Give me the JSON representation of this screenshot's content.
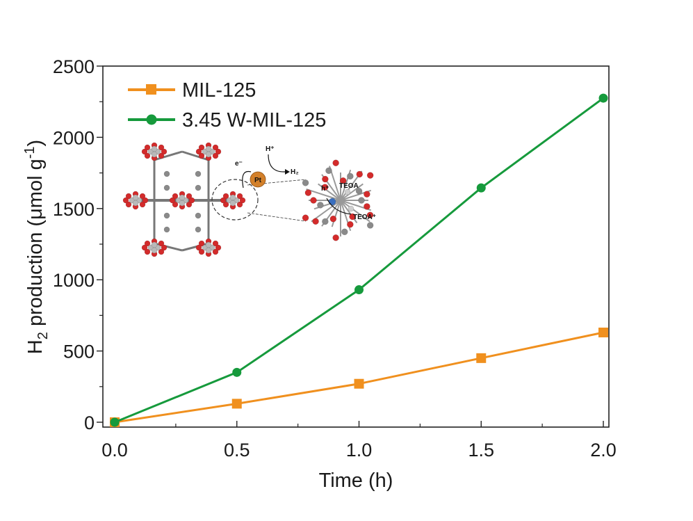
{
  "chart_data": {
    "type": "line",
    "xlabel": "Time (h)",
    "ylabel_main": "H",
    "ylabel_sub": "2",
    "ylabel_rest": " production (μmol g",
    "ylabel_sup": "-1",
    "ylabel_close": ")",
    "xlim": [
      0,
      2.0
    ],
    "ylim": [
      0,
      2500
    ],
    "xticks": [
      "0.0",
      "0.5",
      "1.0",
      "1.5",
      "2.0"
    ],
    "yticks": [
      "0",
      "500",
      "1000",
      "1500",
      "2000",
      "2500"
    ],
    "x": [
      0,
      0.5,
      1.0,
      1.5,
      2.0
    ],
    "series": [
      {
        "name": "MIL-125",
        "marker": "square",
        "color": "#f0901e",
        "values": [
          0,
          130,
          270,
          450,
          630
        ]
      },
      {
        "name": "3.45 W-MIL-125",
        "marker": "circle",
        "color": "#169a3c",
        "values": [
          0,
          350,
          930,
          1645,
          2275
        ]
      }
    ],
    "legend_position": "top-left",
    "grid": false
  },
  "inset": {
    "labels": {
      "electron": "e⁻",
      "proton": "H⁺",
      "hydrogen": "H₂",
      "platinum": "Pt",
      "teoa": "TEOA",
      "teoa_plus": "TEOA⁺",
      "hole": "h⁺"
    }
  }
}
